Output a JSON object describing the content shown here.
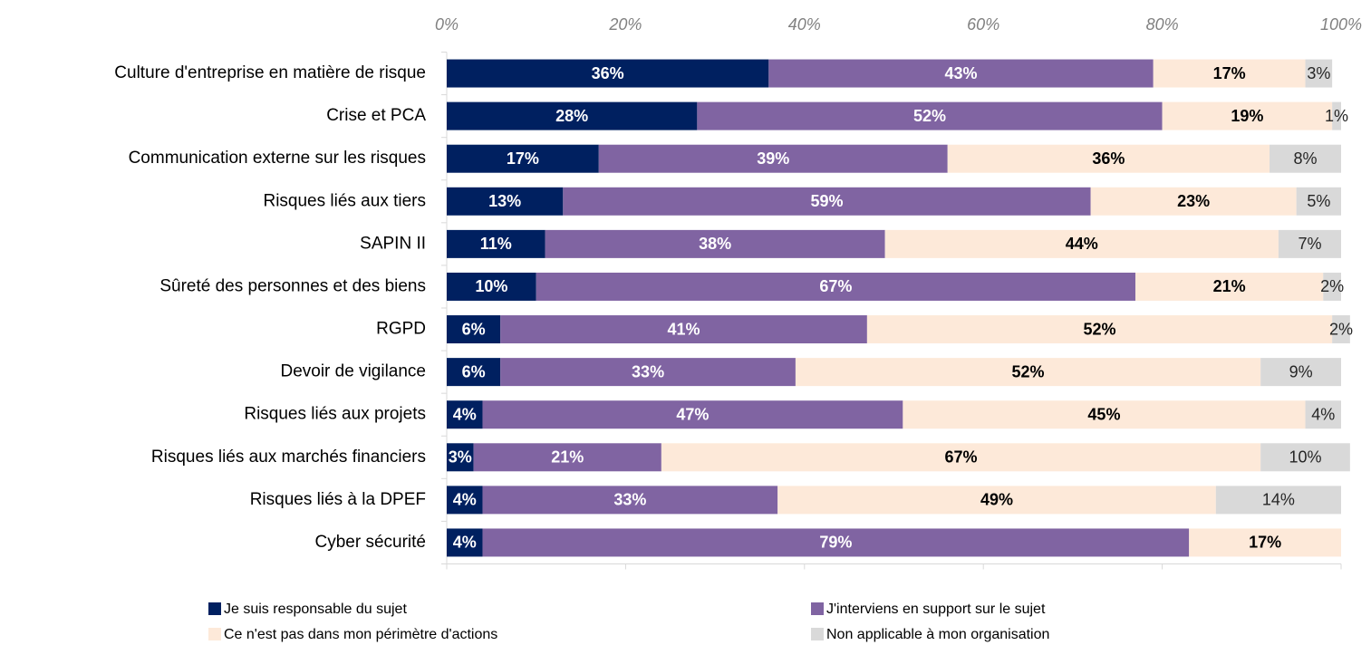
{
  "chart_data": {
    "type": "stacked_bar_horizontal",
    "categories": [
      "Culture d'entreprise en matière de risque",
      "Crise et PCA",
      "Communication externe sur les risques",
      "Risques liés aux tiers",
      "SAPIN II",
      "Sûreté des personnes et des biens",
      "RGPD",
      "Devoir de vigilance",
      "Risques liés aux projets",
      "Risques liés aux marchés financiers",
      "Risques liés à la DPEF",
      "Cyber sécurité"
    ],
    "series": [
      {
        "name": "Je suis responsable du sujet",
        "color": "#002060",
        "label_color": "#ffffff",
        "label_weight": "bold",
        "values": [
          36,
          28,
          17,
          13,
          11,
          10,
          6,
          6,
          4,
          3,
          4,
          4
        ],
        "value_labels": [
          "36%",
          "28%",
          "17%",
          "13%",
          "11%",
          "10%",
          "6%",
          "6%",
          "4%",
          "3%",
          "4%",
          "4%"
        ]
      },
      {
        "name": "J'interviens en support sur le sujet",
        "color": "#8064a2",
        "label_color": "#ffffff",
        "label_weight": "bold",
        "values": [
          43,
          52,
          39,
          59,
          38,
          67,
          41,
          33,
          47,
          21,
          33,
          79
        ],
        "value_labels": [
          "43%",
          "52%",
          "39%",
          "59%",
          "38%",
          "67%",
          "41%",
          "33%",
          "47%",
          "21%",
          "33%",
          "79%"
        ]
      },
      {
        "name": "Ce n'est pas dans mon périmètre d'actions",
        "color": "#fde9d9",
        "label_color": "#000000",
        "label_weight": "bold",
        "values": [
          17,
          19,
          36,
          23,
          44,
          21,
          52,
          52,
          45,
          67,
          49,
          17
        ],
        "value_labels": [
          "17%",
          "19%",
          "36%",
          "23%",
          "44%",
          "21%",
          "52%",
          "52%",
          "45%",
          "67%",
          "49%",
          "17%"
        ]
      },
      {
        "name": "Non applicable à mon organisation",
        "color": "#d9d9d9",
        "label_color": "#262626",
        "label_weight": "normal",
        "values": [
          3,
          1,
          8,
          5,
          7,
          2,
          2,
          9,
          4,
          10,
          14,
          null
        ],
        "value_labels": [
          "3%",
          "1%",
          "8%",
          "5%",
          "7%",
          "2%",
          "2%",
          "9%",
          "4%",
          "10%",
          "14%",
          null
        ]
      }
    ],
    "xlim": [
      0,
      100
    ],
    "xticks": [
      {
        "value": 0,
        "label": "0%"
      },
      {
        "value": 20,
        "label": "20%"
      },
      {
        "value": 40,
        "label": "40%"
      },
      {
        "value": 60,
        "label": "60%"
      },
      {
        "value": 80,
        "label": "80%"
      },
      {
        "value": 100,
        "label": "100%"
      }
    ]
  }
}
